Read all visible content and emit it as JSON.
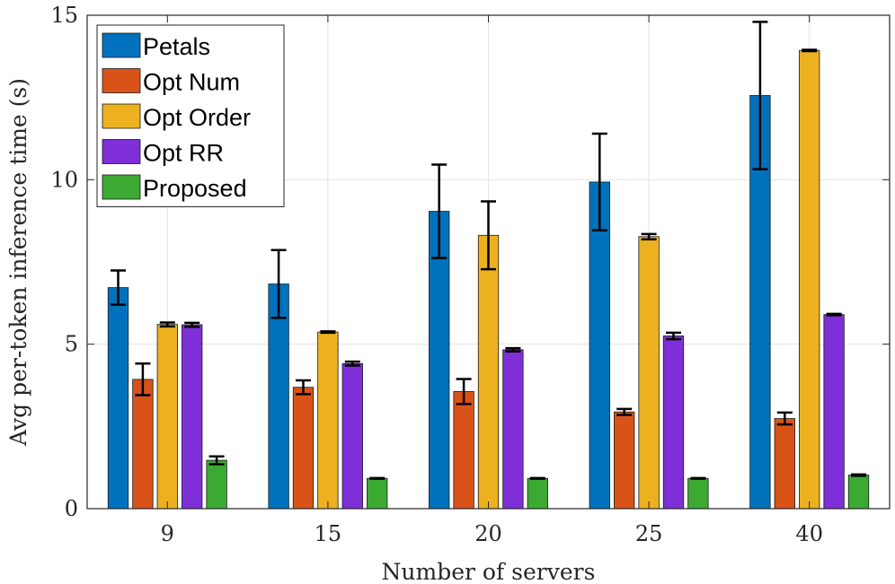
{
  "chart_data": {
    "type": "bar",
    "xlabel": "Number of servers",
    "ylabel": "Avg per-token inference time (s)",
    "categories": [
      "9",
      "15",
      "20",
      "25",
      "40"
    ],
    "ylim": [
      0,
      15
    ],
    "yticks": [
      "0",
      "5",
      "10",
      "15"
    ],
    "grid": true,
    "legend_position": "top-left",
    "series": [
      {
        "name": "Petals",
        "color": "#0072BD",
        "values": [
          6.72,
          6.83,
          9.04,
          9.93,
          12.56
        ],
        "errors": [
          0.52,
          1.03,
          1.42,
          1.47,
          2.24
        ]
      },
      {
        "name": "Opt Num",
        "color": "#D95319",
        "values": [
          3.93,
          3.69,
          3.56,
          2.94,
          2.74
        ],
        "errors": [
          0.48,
          0.21,
          0.38,
          0.09,
          0.18
        ]
      },
      {
        "name": "Opt Order",
        "color": "#EDB120",
        "values": [
          5.6,
          5.37,
          8.31,
          8.27,
          13.93
        ],
        "errors": [
          0.06,
          0.02,
          1.03,
          0.08,
          0.02
        ]
      },
      {
        "name": "Opt RR",
        "color": "#7E2FD8",
        "values": [
          5.59,
          4.41,
          4.83,
          5.25,
          5.9
        ],
        "errors": [
          0.06,
          0.06,
          0.05,
          0.1,
          0.02
        ]
      },
      {
        "name": "Proposed",
        "color": "#3CAA32",
        "values": [
          1.47,
          0.92,
          0.92,
          0.92,
          1.02
        ],
        "errors": [
          0.12,
          0.01,
          0.01,
          0.01,
          0.02
        ]
      }
    ]
  }
}
